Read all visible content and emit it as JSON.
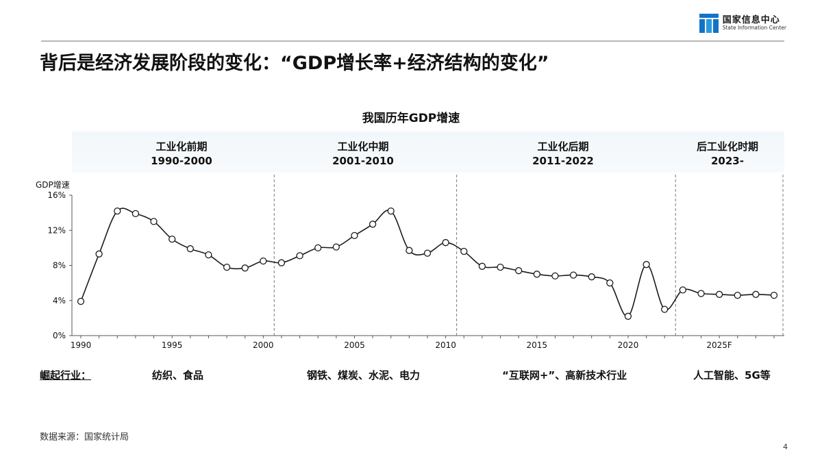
{
  "header": {
    "logo_cn": "国家信息中心",
    "logo_en": "State Information Center",
    "title": "背后是经济发展阶段的变化：“GDP增长率+经济结构的变化”"
  },
  "chart_data": {
    "type": "line",
    "title": "我国历年GDP增速",
    "ylabel": "GDP增速",
    "ylim": [
      0,
      16
    ],
    "yticks": [
      "16%",
      "12%",
      "8%",
      "4%",
      "0%"
    ],
    "yticks_values": [
      16,
      12,
      8,
      4,
      0
    ],
    "xlim": [
      1990,
      2028
    ],
    "xticks": [
      1990,
      1995,
      2000,
      2005,
      2010,
      2015,
      2020,
      "2025F"
    ],
    "xticks_values": [
      1990,
      1995,
      2000,
      2005,
      2010,
      2015,
      2020,
      2025
    ],
    "series": [
      {
        "x": [
          1990,
          1991,
          1992,
          1993,
          1994,
          1995,
          1996,
          1997,
          1998,
          1999,
          2000,
          2001,
          2002,
          2003,
          2004,
          2005,
          2006,
          2007,
          2008,
          2009,
          2010,
          2011,
          2012,
          2013,
          2014,
          2015,
          2016,
          2017,
          2018,
          2019,
          2020,
          2021,
          2022,
          2023,
          2024,
          2025,
          2026,
          2027,
          2028
        ],
        "values": [
          3.9,
          9.3,
          14.2,
          13.9,
          13.0,
          11.0,
          9.9,
          9.2,
          7.8,
          7.7,
          8.5,
          8.3,
          9.1,
          10.0,
          10.1,
          11.4,
          12.7,
          14.2,
          9.7,
          9.4,
          10.6,
          9.6,
          7.9,
          7.8,
          7.4,
          7.0,
          6.8,
          6.9,
          6.7,
          6.0,
          2.2,
          8.1,
          3.0,
          5.2,
          4.8,
          4.7,
          4.6,
          4.7,
          4.6
        ]
      }
    ],
    "dividers": [
      2000.6,
      2010.6,
      2022.6
    ],
    "grid": false,
    "periods": [
      {
        "name": "工业化前期",
        "years": "1990-2000"
      },
      {
        "name": "工业化中期",
        "years": "2001-2010"
      },
      {
        "name": "工业化后期",
        "years": "2011-2022"
      },
      {
        "name": "后工业化时期",
        "years": "2023-"
      }
    ]
  },
  "industries": {
    "label": "崛起行业：",
    "items": [
      "纺织、食品",
      "钢铁、煤炭、水泥、电力",
      "“互联网+”、高新技术行业",
      "人工智能、5G等"
    ]
  },
  "footer": {
    "source": "数据来源：国家统计局",
    "page": "4"
  }
}
